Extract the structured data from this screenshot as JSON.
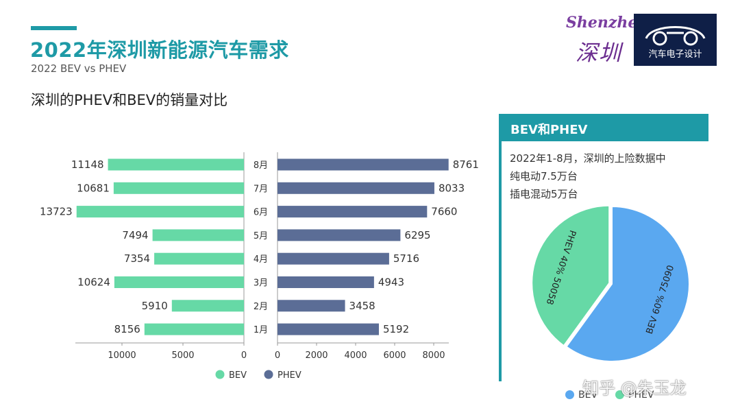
{
  "header": {
    "title": "2022年深圳新能源汽车需求",
    "subtitle": "2022  BEV vs PHEV",
    "section_heading": "深圳的PHEV和BEV的销量对比"
  },
  "logos": {
    "shenzhen_latin": "Shenzhen",
    "shenzhen_han": "深圳",
    "car_label": "汽车电子设计"
  },
  "panel": {
    "heading": "BEV和PHEV",
    "lines": [
      "2022年1-8月，深圳的上险数据中",
      "纯电动7.5万台",
      "插电混动5万台"
    ]
  },
  "watermark": "知乎 @朱玉龙",
  "colors": {
    "teal": "#1e9aa6",
    "bev": "#66d9a6",
    "phev": "#5b6d96",
    "pie_bev": "#5aa8f0",
    "pie_phev": "#66d9a6"
  },
  "chart_data": [
    {
      "type": "bar",
      "orientation": "horizontal-butterfly",
      "categories": [
        "8月",
        "7月",
        "6月",
        "5月",
        "4月",
        "3月",
        "2月",
        "1月"
      ],
      "series": [
        {
          "name": "BEV",
          "values": [
            11148,
            10681,
            13723,
            7494,
            7354,
            10624,
            5910,
            8156
          ],
          "axis_ticks": [
            "10000",
            "5000",
            "0"
          ],
          "xlim": [
            0,
            14000
          ]
        },
        {
          "name": "PHEV",
          "values": [
            8761,
            8033,
            7660,
            6295,
            5716,
            4943,
            3458,
            5192
          ],
          "axis_ticks": [
            "0",
            "2000",
            "4000",
            "6000",
            "8000"
          ],
          "xlim": [
            0,
            9000
          ]
        }
      ],
      "legend": "bottom"
    },
    {
      "type": "pie",
      "slices": [
        {
          "name": "BEV",
          "value": 75090,
          "percent": "60%",
          "label": "BEV  60%  75090"
        },
        {
          "name": "PHEV",
          "value": 50058,
          "percent": "40%",
          "label": "PHEV  40%  50058"
        }
      ],
      "legend": "bottom"
    }
  ]
}
